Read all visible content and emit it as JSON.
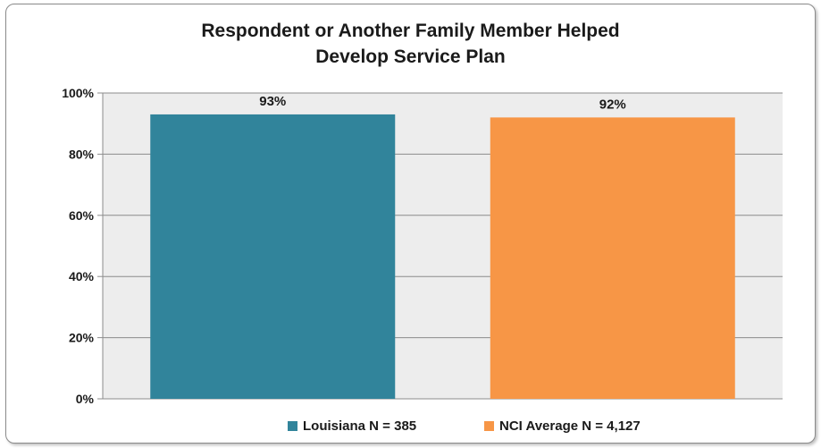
{
  "colors": {
    "series_1": "#31849b",
    "series_2": "#f79646",
    "plot_bg": "#ededed",
    "grid": "#8c8c8c"
  },
  "chart_data": {
    "type": "bar",
    "title_lines": [
      "Respondent or Another Family Member Helped",
      "Develop Service Plan"
    ],
    "categories": [
      "Louisiana N = 385",
      "NCI Average N = 4,127"
    ],
    "values": [
      93,
      92
    ],
    "data_labels": [
      "93%",
      "92%"
    ],
    "ylim": [
      0,
      100
    ],
    "yticks": [
      "0%",
      "20%",
      "40%",
      "60%",
      "80%",
      "100%"
    ],
    "ytick_values": [
      0,
      20,
      40,
      60,
      80,
      100
    ],
    "grid": true,
    "legend": "bottom",
    "legend_entries": [
      "Louisiana N = 385",
      "NCI Average N = 4,127"
    ]
  }
}
